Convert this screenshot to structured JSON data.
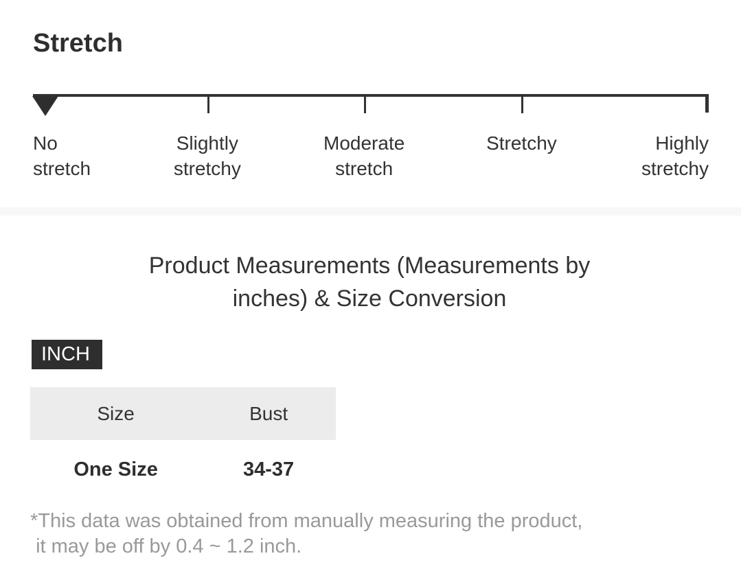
{
  "stretch": {
    "title": "Stretch",
    "selected_level": "No stretch",
    "levels_count": 5,
    "labels": [
      {
        "text": "No\nstretch"
      },
      {
        "text": "Slightly\nstretchy"
      },
      {
        "text": "Moderate\nstretch"
      },
      {
        "text": "Stretchy"
      },
      {
        "text": "Highly\nstretchy"
      }
    ]
  },
  "measurements": {
    "title": "Product Measurements (Measurements by\ninches) & Size Conversion",
    "unit_badge": "INCH",
    "table": {
      "headers": [
        "Size",
        "Bust"
      ],
      "rows": [
        [
          "One Size",
          "34-37"
        ]
      ]
    },
    "footnote": "*This data was obtained from manually measuring the product,\n it may be off by 0.4 ~ 1.2 inch."
  },
  "colors": {
    "text_dark": "#2e2e2e",
    "text_body": "#333333",
    "text_muted": "#999999",
    "badge_bg": "#2e2e2e",
    "badge_text": "#ffffff",
    "table_header_bg": "#ececec",
    "divider_bg": "#f7f7f7",
    "page_bg": "#ffffff"
  }
}
